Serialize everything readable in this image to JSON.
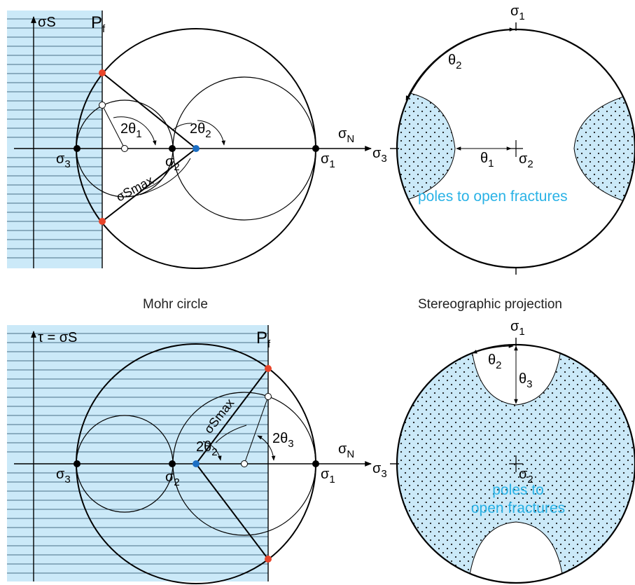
{
  "colors": {
    "shade": "#cbe9f8",
    "shade_edge": "#7aaec8",
    "ink": "#000000",
    "red_point": "#e8452a",
    "blue_point": "#1c6fc4",
    "label_blue": "#29b2e6"
  },
  "captions": {
    "mohr": "Mohr circle",
    "stereo": "Stereographic projection"
  },
  "top_mohr": {
    "ylabel": "σS",
    "pf": "P",
    "pf_sub": "f",
    "xlabel": "σ",
    "xlabel_sub": "N",
    "sigma3": "σ",
    "sigma3_sub": "3",
    "sigma2": "σ",
    "sigma2_sub": "2",
    "sigma1": "σ",
    "sigma1_sub": "1",
    "angle1": "2θ",
    "angle1_sub": "1",
    "angle2": "2θ",
    "angle2_sub": "2",
    "smax": "σSmax"
  },
  "top_stereo": {
    "sigma1": "σ",
    "sigma1_sub": "1",
    "sigma2": "σ",
    "sigma2_sub": "2",
    "sigma3": "σ",
    "sigma3_sub": "3",
    "theta1": "θ",
    "theta1_sub": "1",
    "theta2": "θ",
    "theta2_sub": "2",
    "poles": "poles to open fractures"
  },
  "bottom_mohr": {
    "ylabel": "τ = σS",
    "pf": "P",
    "pf_sub": "f",
    "xlabel": "σ",
    "xlabel_sub": "N",
    "sigma3": "σ",
    "sigma3_sub": "3",
    "sigma2": "σ",
    "sigma2_sub": "2",
    "sigma1": "σ",
    "sigma1_sub": "1",
    "angle2": "2θ",
    "angle2_sub": "2",
    "angle3": "2θ",
    "angle3_sub": "3",
    "smax": "σSmax"
  },
  "bottom_stereo": {
    "sigma1": "σ",
    "sigma1_sub": "1",
    "sigma2": "σ",
    "sigma2_sub": "2",
    "sigma3": "σ",
    "sigma3_sub": "3",
    "theta2": "θ",
    "theta2_sub": "2",
    "theta3": "θ",
    "theta3_sub": "3",
    "poles_line1": "poles to",
    "poles_line2": "open fractures"
  }
}
